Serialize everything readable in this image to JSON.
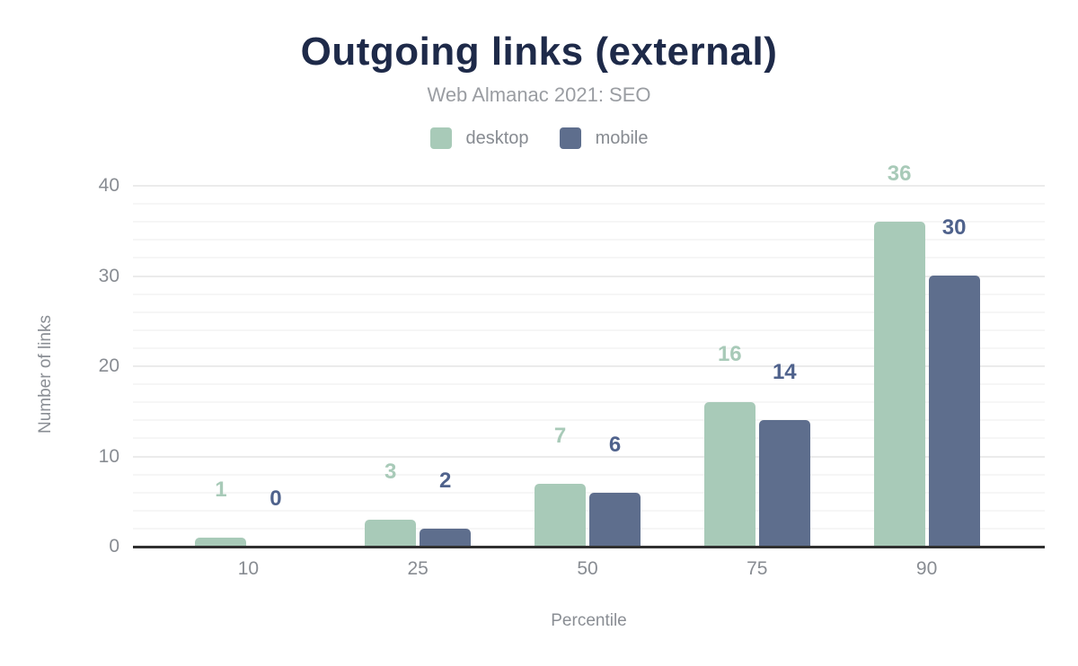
{
  "header": {
    "title": "Outgoing links (external)",
    "subtitle": "Web Almanac 2021: SEO"
  },
  "chart_data": {
    "type": "bar",
    "title": "Outgoing links (external)",
    "subtitle": "Web Almanac 2021: SEO",
    "categories": [
      "10",
      "25",
      "50",
      "75",
      "90"
    ],
    "series": [
      {
        "name": "desktop",
        "color": "#a8cab8",
        "label_color": "#a8cab8",
        "values": [
          1,
          3,
          7,
          16,
          36
        ]
      },
      {
        "name": "mobile",
        "color": "#5e6e8d",
        "label_color": "#4f628c",
        "values": [
          0,
          2,
          6,
          14,
          30
        ]
      }
    ],
    "xlabel": "Percentile",
    "ylabel": "Number of links",
    "ylim": [
      0,
      40
    ],
    "ytick_step": 10,
    "yminor_step": 2,
    "yticks": [
      0,
      10,
      20,
      30,
      40
    ],
    "grid": "horizontal",
    "legend_position": "top",
    "colors": {
      "title": "#1e2a49",
      "subtitle_text": "#9a9da2",
      "axis_text": "#888c92",
      "axis_line": "#303030",
      "gridline_major": "#ebebeb",
      "gridline_minor": "#f6f6f6",
      "background": "#ffffff"
    }
  }
}
